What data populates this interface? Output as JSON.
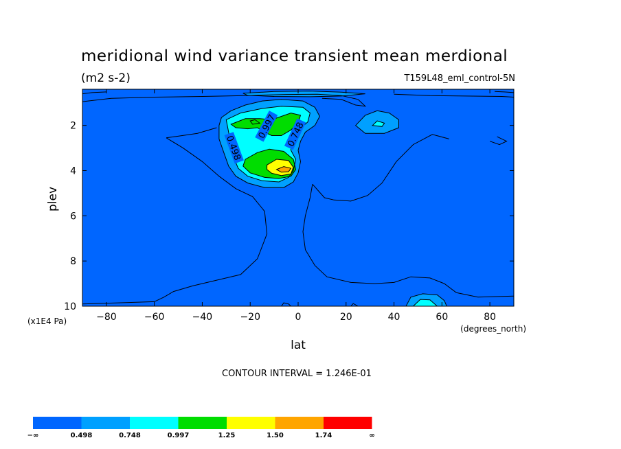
{
  "header": {
    "title": "meridional wind variance transient mean merdional",
    "units": "(m2 s-2)",
    "dataset": "T159L48_eml_control-5N"
  },
  "footer": {
    "contour_interval": "CONTOUR INTERVAL = 1.246E-01"
  },
  "colors": {
    "background": "#0066ff",
    "levels": [
      "#0066ff",
      "#00a0ff",
      "#00ffff",
      "#00dd00",
      "#ffff00",
      "#ffa500",
      "#ff0000"
    ]
  },
  "chart_data": {
    "type": "heatmap",
    "subtype": "filled-contour",
    "title": "meridional wind variance transient mean merdional",
    "units": "(m2 s-2)",
    "xlabel": "lat",
    "xunits": "(degrees_north)",
    "ylabel": "plev",
    "yunits": "(x1E4 Pa)",
    "xlim": [
      -90,
      90
    ],
    "ylim": [
      10,
      0.4
    ],
    "y_inverted": true,
    "xticks": [
      -80,
      -60,
      -40,
      -20,
      0,
      20,
      40,
      60,
      80
    ],
    "yticks": [
      2,
      4,
      6,
      8,
      10
    ],
    "xtick_labels": [
      "−80",
      "−60",
      "−40",
      "−20",
      "0",
      "20",
      "40",
      "60",
      "80"
    ],
    "ytick_labels": [
      "2",
      "4",
      "6",
      "8",
      "10"
    ],
    "contour_interval": 0.1246,
    "colorbar": {
      "labels": [
        "−∞",
        "0.498",
        "0.748",
        "0.997",
        "1.25",
        "1.50",
        "1.74",
        "∞"
      ],
      "bounds": [
        "-inf",
        0.498,
        0.748,
        0.997,
        1.25,
        1.5,
        1.74,
        "inf"
      ]
    },
    "contour_labels": [
      {
        "text": "0.498",
        "lat": -27,
        "plev": 3.0,
        "angle": 70
      },
      {
        "text": "0.997",
        "lat": -13,
        "plev": 2.05,
        "angle": -62
      },
      {
        "text": "0.748",
        "lat": -1,
        "plev": 2.4,
        "angle": -65
      }
    ],
    "regions": [
      {
        "level": 1,
        "points": [
          [
            -32,
            1.65
          ],
          [
            -28,
            1.35
          ],
          [
            -22,
            1.1
          ],
          [
            -15,
            0.92
          ],
          [
            -7,
            0.85
          ],
          [
            2,
            0.92
          ],
          [
            7,
            1.2
          ],
          [
            9,
            1.6
          ],
          [
            7,
            2.0
          ],
          [
            3,
            2.3
          ],
          [
            1,
            2.7
          ],
          [
            0,
            3.1
          ],
          [
            1,
            3.6
          ],
          [
            0,
            4.1
          ],
          [
            -2,
            4.5
          ],
          [
            -6,
            4.75
          ],
          [
            -14,
            4.75
          ],
          [
            -21,
            4.55
          ],
          [
            -26,
            4.25
          ],
          [
            -29,
            3.8
          ],
          [
            -31,
            3.2
          ],
          [
            -33,
            2.6
          ],
          [
            -33,
            2.0
          ]
        ]
      },
      {
        "level": 1,
        "points": [
          [
            24,
            2.0
          ],
          [
            28,
            1.55
          ],
          [
            33,
            1.35
          ],
          [
            38,
            1.45
          ],
          [
            42,
            1.75
          ],
          [
            42,
            2.1
          ],
          [
            36,
            2.35
          ],
          [
            28,
            2.35
          ]
        ]
      },
      {
        "level": 1,
        "points": [
          [
            -23,
            0.58
          ],
          [
            -10,
            0.5
          ],
          [
            5,
            0.48
          ],
          [
            18,
            0.53
          ],
          [
            28,
            0.6
          ],
          [
            18,
            0.7
          ],
          [
            5,
            0.73
          ],
          [
            -10,
            0.72
          ],
          [
            -21,
            0.67
          ]
        ]
      },
      {
        "level": 1,
        "points": [
          [
            45,
            10
          ],
          [
            47,
            9.6
          ],
          [
            52,
            9.45
          ],
          [
            58,
            9.5
          ],
          [
            61,
            9.75
          ],
          [
            62,
            10
          ]
        ]
      },
      {
        "level": 2,
        "points": [
          [
            -30,
            1.75
          ],
          [
            -24,
            1.45
          ],
          [
            -15,
            1.25
          ],
          [
            -7,
            1.15
          ],
          [
            2,
            1.2
          ],
          [
            5,
            1.45
          ],
          [
            4,
            1.85
          ],
          [
            0,
            2.2
          ],
          [
            -3,
            2.6
          ],
          [
            -3,
            3.1
          ],
          [
            -1,
            3.5
          ],
          [
            -2,
            4.0
          ],
          [
            -4,
            4.3
          ],
          [
            -8,
            4.5
          ],
          [
            -15,
            4.45
          ],
          [
            -21,
            4.25
          ],
          [
            -25,
            3.9
          ],
          [
            -27,
            3.4
          ],
          [
            -28,
            2.9
          ],
          [
            -29,
            2.3
          ]
        ]
      },
      {
        "level": 2,
        "points": [
          [
            31,
            2.0
          ],
          [
            33,
            1.8
          ],
          [
            36,
            1.9
          ],
          [
            35,
            2.05
          ]
        ]
      },
      {
        "level": 2,
        "points": [
          [
            -20,
            1.8
          ],
          [
            -18,
            1.75
          ],
          [
            -16,
            1.9
          ],
          [
            -19,
            1.95
          ]
        ]
      },
      {
        "level": 2,
        "points": [
          [
            48,
            10
          ],
          [
            51,
            9.7
          ],
          [
            55,
            9.72
          ],
          [
            58,
            10
          ]
        ]
      },
      {
        "level": 3,
        "points": [
          [
            -28,
            1.95
          ],
          [
            -22,
            1.7
          ],
          [
            -16,
            1.7
          ],
          [
            -11,
            1.75
          ],
          [
            -7,
            1.6
          ],
          [
            -3,
            1.45
          ],
          [
            1,
            1.55
          ],
          [
            0,
            1.9
          ],
          [
            -3,
            2.2
          ],
          [
            -7,
            2.45
          ],
          [
            -11,
            2.45
          ],
          [
            -14,
            2.3
          ],
          [
            -17,
            2.1
          ],
          [
            -21,
            2.15
          ],
          [
            -26,
            2.1
          ]
        ]
      },
      {
        "level": 3,
        "points": [
          [
            -22,
            3.5
          ],
          [
            -17,
            3.2
          ],
          [
            -12,
            3.05
          ],
          [
            -6,
            3.15
          ],
          [
            -2,
            3.5
          ],
          [
            -1,
            3.95
          ],
          [
            -3,
            4.25
          ],
          [
            -8,
            4.35
          ],
          [
            -14,
            4.3
          ],
          [
            -20,
            4.1
          ],
          [
            -23,
            3.8
          ]
        ]
      },
      {
        "level": 4,
        "points": [
          [
            -13,
            3.75
          ],
          [
            -9,
            3.5
          ],
          [
            -4,
            3.55
          ],
          [
            -2,
            3.85
          ],
          [
            -3,
            4.15
          ],
          [
            -7,
            4.22
          ],
          [
            -11,
            4.12
          ],
          [
            -13,
            3.95
          ]
        ]
      },
      {
        "level": 5,
        "points": [
          [
            -9,
            3.95
          ],
          [
            -6,
            3.82
          ],
          [
            -3,
            3.9
          ],
          [
            -4,
            4.05
          ],
          [
            -7,
            4.07
          ]
        ]
      }
    ],
    "extra_contours": [
      [
        [
          -90,
          0.95
        ],
        [
          -78,
          0.8
        ],
        [
          -60,
          0.75
        ],
        [
          -40,
          0.72
        ],
        [
          -22,
          0.68
        ],
        [
          -5,
          0.63
        ],
        [
          8,
          0.62
        ],
        [
          18,
          0.68
        ],
        [
          25,
          0.85
        ],
        [
          28,
          1.15
        ],
        [
          24,
          1.1
        ],
        [
          18,
          0.85
        ],
        [
          10,
          0.8
        ]
      ],
      [
        [
          -90,
          0.6
        ],
        [
          -86,
          0.55
        ],
        [
          -80,
          0.52
        ]
      ],
      [
        [
          90,
          0.55
        ],
        [
          86,
          0.52
        ],
        [
          82,
          0.5
        ]
      ],
      [
        [
          40,
          0.62
        ],
        [
          55,
          0.68
        ],
        [
          70,
          0.7
        ],
        [
          85,
          0.72
        ],
        [
          90,
          0.75
        ]
      ],
      [
        [
          -55,
          2.55
        ],
        [
          -42,
          2.35
        ],
        [
          -34,
          2.1
        ]
      ],
      [
        [
          -55,
          2.55
        ],
        [
          -48,
          3.0
        ],
        [
          -40,
          3.6
        ],
        [
          -33,
          4.25
        ],
        [
          -26,
          4.8
        ],
        [
          -19,
          5.15
        ],
        [
          -14,
          5.8
        ],
        [
          -13,
          6.8
        ],
        [
          -17,
          7.9
        ],
        [
          -24,
          8.6
        ],
        [
          -34,
          8.85
        ],
        [
          -44,
          9.1
        ],
        [
          -52,
          9.35
        ],
        [
          -56,
          9.6
        ],
        [
          -60,
          9.8
        ],
        [
          -75,
          9.85
        ],
        [
          -90,
          9.9
        ]
      ],
      [
        [
          6,
          4.6
        ],
        [
          11,
          5.2
        ],
        [
          15,
          5.3
        ],
        [
          22,
          5.35
        ],
        [
          29,
          5.1
        ],
        [
          35,
          4.55
        ],
        [
          41,
          3.6
        ],
        [
          48,
          2.85
        ],
        [
          56,
          2.4
        ],
        [
          63,
          2.6
        ]
      ],
      [
        [
          6,
          4.6
        ],
        [
          5,
          5.2
        ],
        [
          3,
          6.0
        ],
        [
          2,
          6.7
        ],
        [
          3,
          7.5
        ],
        [
          7,
          8.2
        ],
        [
          12,
          8.7
        ],
        [
          22,
          8.95
        ],
        [
          32,
          9.0
        ],
        [
          40,
          8.95
        ],
        [
          47,
          8.7
        ],
        [
          55,
          8.75
        ],
        [
          61,
          9.0
        ],
        [
          66,
          9.4
        ],
        [
          75,
          9.6
        ],
        [
          90,
          9.55
        ]
      ],
      [
        [
          83,
          2.5
        ],
        [
          87,
          2.7
        ],
        [
          84,
          2.85
        ],
        [
          80,
          2.7
        ]
      ],
      [
        [
          -7,
          10
        ],
        [
          -6,
          9.85
        ],
        [
          -4,
          9.9
        ],
        [
          -3,
          10
        ]
      ],
      [
        [
          22,
          10
        ],
        [
          23,
          9.88
        ],
        [
          25,
          10
        ]
      ]
    ]
  }
}
